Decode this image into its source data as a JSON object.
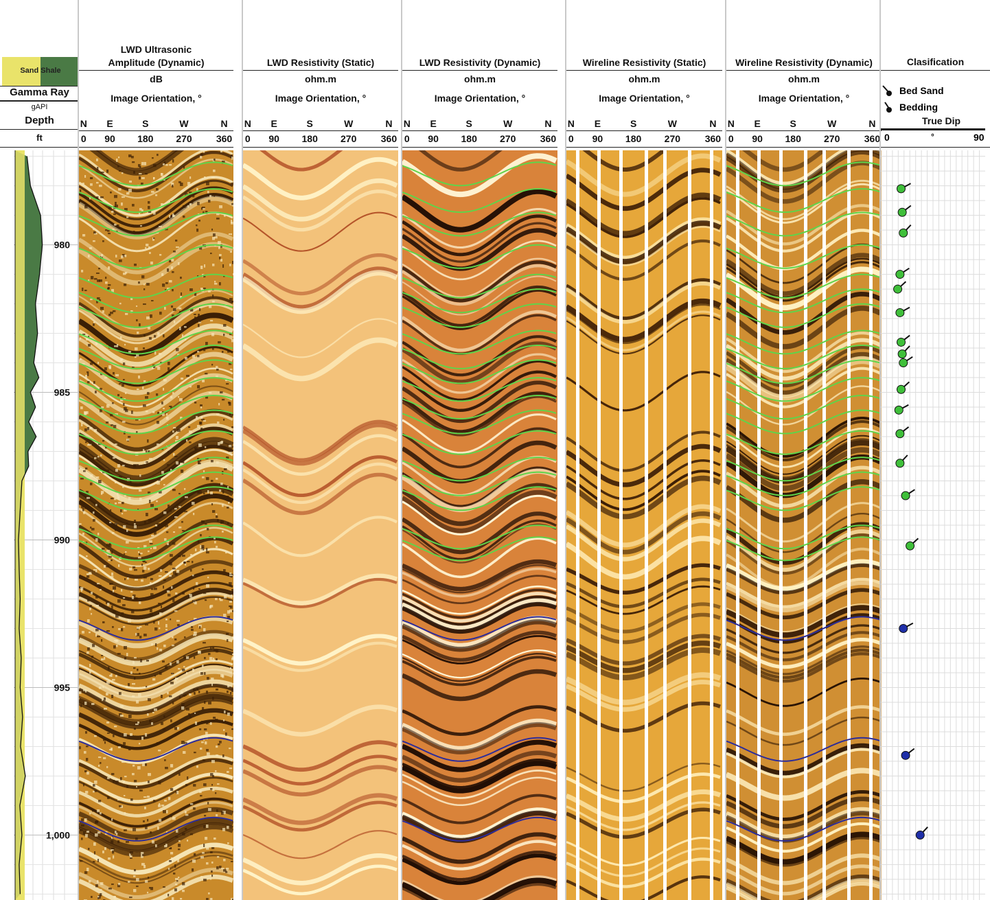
{
  "gamma_track": {
    "sand_label": "Sand",
    "shale_label": "Shale",
    "title": "Gamma Ray",
    "unit": "gAPI",
    "depth_label": "Depth",
    "depth_unit": "ft"
  },
  "tracks": [
    {
      "title_line1": "LWD Ultrasonic",
      "title_line2": "Amplitude (Dynamic)",
      "unit": "dB",
      "orientation": "Image Orientation, °",
      "palette": "ultrasonic"
    },
    {
      "title_line1": "",
      "title_line2": "LWD Resistivity (Static)",
      "unit": "ohm.m",
      "orientation": "Image Orientation, °",
      "palette": "static"
    },
    {
      "title_line1": "",
      "title_line2": "LWD Resistivity (Dynamic)",
      "unit": "ohm.m",
      "orientation": "Image Orientation, °",
      "palette": "dynamic"
    },
    {
      "title_line1": "",
      "title_line2": "Wireline Resistivity (Static)",
      "unit": "ohm.m",
      "orientation": "Image Orientation, °",
      "palette": "wl_static"
    },
    {
      "title_line1": "",
      "title_line2": "Wireline Resistivity (Dynamic)",
      "unit": "ohm.m",
      "orientation": "Image Orientation, °",
      "palette": "wl_dynamic"
    }
  ],
  "compass_letters": [
    "N",
    "E",
    "S",
    "W",
    "N"
  ],
  "compass_degrees": [
    "0",
    "90",
    "180",
    "270",
    "360"
  ],
  "classification": {
    "title": "Clasification",
    "legend": [
      "Bed Sand",
      "Bedding"
    ],
    "axis_title": "True Dip",
    "axis_min": "0",
    "axis_unit": "°",
    "axis_max": "90"
  },
  "colors": {
    "sand_fill": "#e9e36a",
    "shale_fill": "#4a7a45",
    "bed_sand_line": "#5fd44a",
    "bedding_line": "#2c2c9a",
    "bed_sand_marker": "#3fbf3a",
    "bedding_marker": "#1f2fa8"
  },
  "chart_data": {
    "type": "well-log",
    "depth_axis": {
      "label": "Depth",
      "unit": "ft",
      "range": [
        976.8,
        1002.2
      ],
      "ticks": [
        980,
        985,
        990,
        995,
        "1,000"
      ],
      "tick_values": [
        980,
        985,
        990,
        995,
        1000
      ]
    },
    "gamma_ray": {
      "unit": "gAPI",
      "depth": [
        977,
        978,
        979,
        980,
        981,
        982,
        983,
        984,
        984.5,
        985,
        985.5,
        986,
        986.5,
        987,
        987.5,
        988,
        989,
        990,
        991,
        992,
        993,
        994,
        995,
        996,
        997,
        998,
        999,
        1000,
        1001,
        1002
      ],
      "shale_fraction": [
        0.35,
        0.45,
        0.75,
        0.8,
        0.72,
        0.6,
        0.66,
        0.55,
        0.7,
        0.45,
        0.6,
        0.4,
        0.62,
        0.38,
        0.4,
        0.2,
        0.15,
        0.1,
        0.12,
        0.15,
        0.12,
        0.18,
        0.15,
        0.22,
        0.16,
        0.3,
        0.14,
        0.2,
        0.12,
        0.15
      ]
    },
    "picked_sinusoids": [
      {
        "class": "Bed Sand",
        "depths": [
          977.6,
          978.5,
          979.3,
          980.4,
          981.4,
          981.9,
          982.4,
          983.3,
          983.8,
          984.3,
          984.9,
          985.5,
          986.0,
          986.7,
          987.6,
          988.1,
          988.6,
          989.9,
          990.3
        ]
      },
      {
        "class": "Bedding",
        "depths": [
          993.0,
          997.1,
          999.8
        ]
      }
    ],
    "true_dip": {
      "axis_title": "True Dip",
      "range": [
        0,
        90
      ],
      "points": [
        {
          "depth": 978.1,
          "dip": 15,
          "class": "Bed Sand"
        },
        {
          "depth": 978.9,
          "dip": 16,
          "class": "Bed Sand"
        },
        {
          "depth": 979.6,
          "dip": 17,
          "class": "Bed Sand"
        },
        {
          "depth": 981.0,
          "dip": 14,
          "class": "Bed Sand"
        },
        {
          "depth": 981.5,
          "dip": 12,
          "class": "Bed Sand"
        },
        {
          "depth": 982.3,
          "dip": 14,
          "class": "Bed Sand"
        },
        {
          "depth": 983.3,
          "dip": 15,
          "class": "Bed Sand"
        },
        {
          "depth": 983.7,
          "dip": 16,
          "class": "Bed Sand"
        },
        {
          "depth": 984.0,
          "dip": 17,
          "class": "Bed Sand"
        },
        {
          "depth": 984.9,
          "dip": 15,
          "class": "Bed Sand"
        },
        {
          "depth": 985.6,
          "dip": 13,
          "class": "Bed Sand"
        },
        {
          "depth": 986.4,
          "dip": 14,
          "class": "Bed Sand"
        },
        {
          "depth": 987.4,
          "dip": 14,
          "class": "Bed Sand"
        },
        {
          "depth": 988.5,
          "dip": 19,
          "class": "Bed Sand"
        },
        {
          "depth": 990.2,
          "dip": 23,
          "class": "Bed Sand"
        },
        {
          "depth": 993.0,
          "dip": 17,
          "class": "Bedding"
        },
        {
          "depth": 997.3,
          "dip": 19,
          "class": "Bedding"
        },
        {
          "depth": 1000.0,
          "dip": 32,
          "class": "Bedding"
        }
      ]
    }
  }
}
